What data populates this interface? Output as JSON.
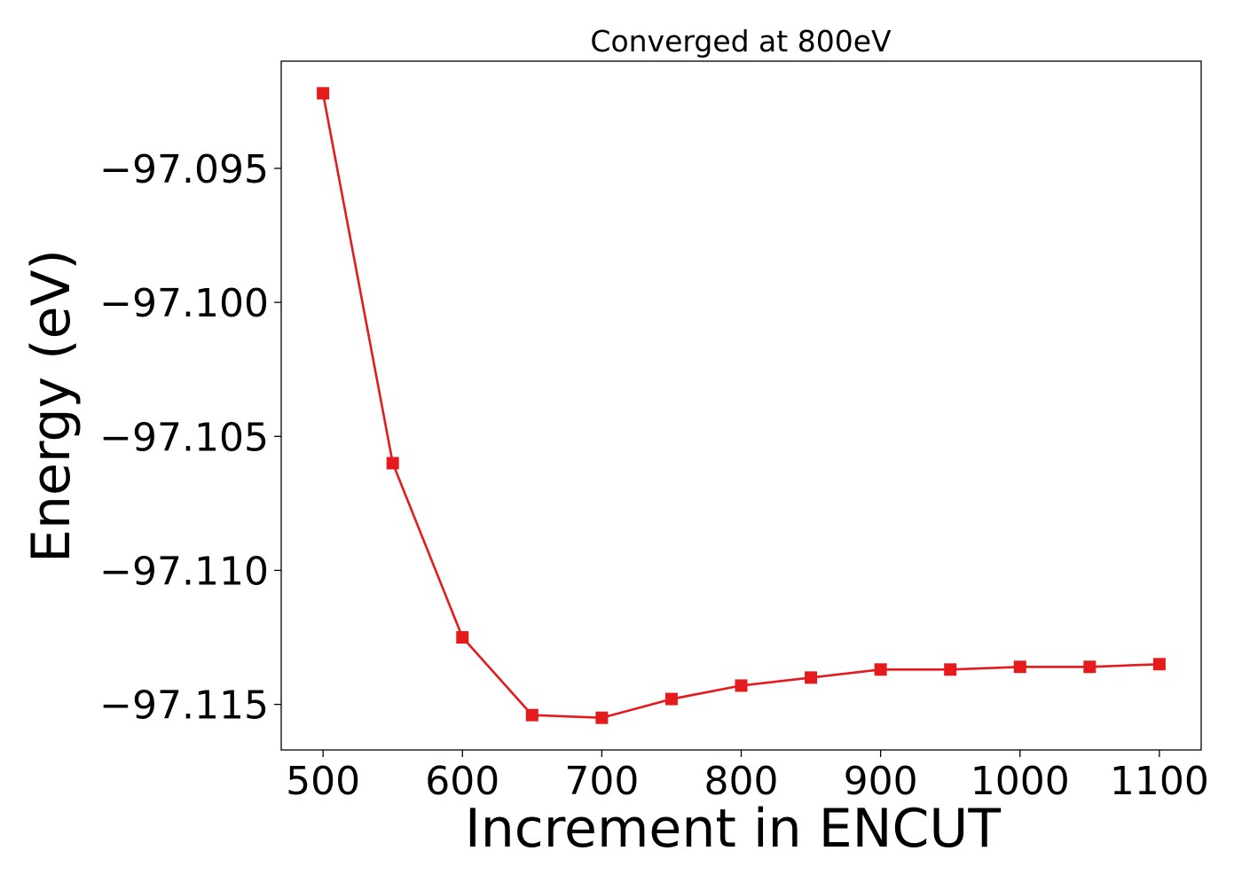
{
  "chart_data": {
    "type": "line",
    "title": "Converged at 800eV",
    "xlabel": "Increment in ENCUT",
    "ylabel": "Energy (eV)",
    "x": [
      500,
      550,
      600,
      650,
      700,
      750,
      800,
      850,
      900,
      950,
      1000,
      1050,
      1100
    ],
    "series": [
      {
        "name": "",
        "color": "#e41a1c",
        "marker": "square",
        "values": [
          -97.0922,
          -97.106,
          -97.1125,
          -97.1154,
          -97.1155,
          -97.1148,
          -97.1143,
          -97.114,
          -97.1137,
          -97.1137,
          -97.1136,
          -97.1136,
          -97.1135
        ]
      }
    ],
    "xlim": [
      470,
      1130
    ],
    "ylim": [
      -97.1167,
      -97.091
    ],
    "xticks": [
      500,
      600,
      700,
      800,
      900,
      1000,
      1100
    ],
    "xtick_labels": [
      "500",
      "600",
      "700",
      "800",
      "900",
      "1000",
      "1100"
    ],
    "yticks": [
      -97.095,
      -97.1,
      -97.105,
      -97.11,
      -97.115
    ],
    "ytick_labels": [
      "−97.095",
      "−97.100",
      "−97.105",
      "−97.110",
      "−97.115"
    ],
    "grid": false,
    "legend": false
  }
}
